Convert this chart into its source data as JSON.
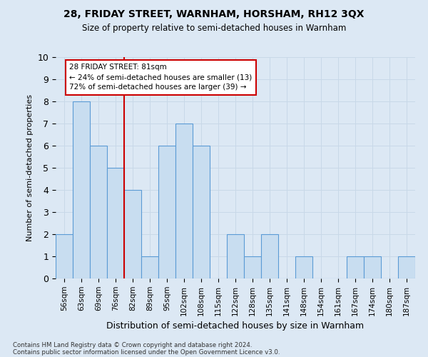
{
  "title": "28, FRIDAY STREET, WARNHAM, HORSHAM, RH12 3QX",
  "subtitle": "Size of property relative to semi-detached houses in Warnham",
  "xlabel": "Distribution of semi-detached houses by size in Warnham",
  "ylabel": "Number of semi-detached properties",
  "categories": [
    "56sqm",
    "63sqm",
    "69sqm",
    "76sqm",
    "82sqm",
    "89sqm",
    "95sqm",
    "102sqm",
    "108sqm",
    "115sqm",
    "122sqm",
    "128sqm",
    "135sqm",
    "141sqm",
    "148sqm",
    "154sqm",
    "161sqm",
    "167sqm",
    "174sqm",
    "180sqm",
    "187sqm"
  ],
  "values": [
    2,
    8,
    6,
    5,
    4,
    1,
    6,
    7,
    6,
    0,
    2,
    1,
    2,
    0,
    1,
    0,
    0,
    1,
    1,
    0,
    1
  ],
  "bar_color": "#c8ddf0",
  "bar_edge_color": "#5b9bd5",
  "subject_line_color": "#cc0000",
  "annotation_box_color": "#ffffff",
  "annotation_box_edge": "#cc0000",
  "grid_color": "#c8d8e8",
  "background_color": "#dce8f4",
  "ylim": [
    0,
    10
  ],
  "subject_bar_index": 3.5,
  "pct_smaller": 24,
  "pct_larger": 72,
  "n_smaller": 13,
  "n_larger": 39,
  "subject_label": "28 FRIDAY STREET: 81sqm",
  "footnote1": "Contains HM Land Registry data © Crown copyright and database right 2024.",
  "footnote2": "Contains public sector information licensed under the Open Government Licence v3.0."
}
